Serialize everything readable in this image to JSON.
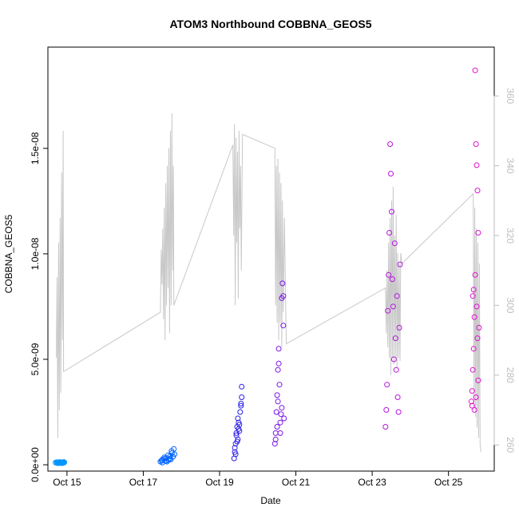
{
  "chart_data": {
    "type": "scatter",
    "title": "ATOM3 Northbound COBBNA_GEOS5",
    "xlabel": "Date",
    "ylabel": "COBBNA_GEOS5",
    "y2label": "",
    "xlim": [
      14.5,
      26.2
    ],
    "ylim": [
      -3e-10,
      1.98e-08
    ],
    "y2lim": [
      252.5,
      374
    ],
    "x_ticks": [
      15,
      17,
      19,
      21,
      23,
      25
    ],
    "x_tick_labels": [
      "Oct 15",
      "Oct 17",
      "Oct 19",
      "Oct 21",
      "Oct 23",
      "Oct 25"
    ],
    "y_ticks": [
      0,
      5e-09,
      1e-08,
      1.5e-08
    ],
    "y_tick_labels": [
      "0.0e+00",
      "5.0e-09",
      "1.0e-08",
      "1.5e-08"
    ],
    "y2_ticks": [
      260,
      280,
      300,
      320,
      340,
      360
    ],
    "y2_tick_labels": [
      "260",
      "280",
      "300",
      "320",
      "340",
      "360"
    ],
    "grid": false,
    "colors": {
      "line": "#c8c8c8",
      "axis": "#000000",
      "axis_right": "#bdbdbd",
      "point_scale": [
        "#0096ff",
        "#0064ff",
        "#1e1ee6",
        "#5a14e6",
        "#8c14e6",
        "#c814dc",
        "#e614d2"
      ]
    },
    "series": [
      {
        "kind": "line",
        "axis": "right",
        "x": [
          14.72,
          14.74,
          14.76,
          14.78,
          14.8,
          14.82,
          14.84,
          14.86,
          14.88,
          14.9,
          14.91,
          17.45,
          17.47,
          17.49,
          17.51,
          17.53,
          17.55,
          17.57,
          17.59,
          17.61,
          17.63,
          17.65,
          17.67,
          17.69,
          17.71,
          17.73,
          17.75,
          17.77,
          17.79,
          17.8,
          19.35,
          19.37,
          19.39,
          19.41,
          19.43,
          19.45,
          19.47,
          19.49,
          19.51,
          19.53,
          19.55,
          19.57,
          19.6,
          20.45,
          20.47,
          20.49,
          20.51,
          20.53,
          20.55,
          20.57,
          20.59,
          20.61,
          20.63,
          20.65,
          20.67,
          20.7,
          20.75,
          23.35,
          23.37,
          23.39,
          23.41,
          23.43,
          23.45,
          23.47,
          23.49,
          23.51,
          23.53,
          23.55,
          23.57,
          23.59,
          23.61,
          23.63,
          23.65,
          23.67,
          23.69,
          23.71,
          23.73,
          23.75,
          23.78,
          25.65,
          25.67,
          25.69,
          25.71,
          25.73,
          25.75,
          25.77,
          25.79,
          25.81,
          25.83,
          25.85
        ],
        "y": [
          285,
          308,
          262,
          318,
          270,
          325,
          275,
          338,
          290,
          350,
          281,
          298,
          316,
          306,
          322,
          296,
          328,
          290,
          335,
          300,
          340,
          305,
          345,
          292,
          350,
          300,
          355,
          310,
          340,
          300,
          346,
          320,
          352,
          300,
          348,
          318,
          344,
          302,
          350,
          322,
          340,
          310,
          349,
          345,
          300,
          340,
          295,
          342,
          290,
          338,
          295,
          335,
          288,
          330,
          298,
          325,
          289,
          305,
          292,
          310,
          288,
          318,
          285,
          325,
          280,
          330,
          285,
          334,
          283,
          320,
          285,
          326,
          282,
          315,
          285,
          312,
          284,
          315,
          312,
          332,
          270,
          328,
          268,
          322,
          265,
          318,
          262,
          312,
          260,
          258
        ]
      },
      {
        "name": "",
        "kind": "points",
        "color": "#0096ff",
        "x": [
          14.7,
          14.73,
          14.75,
          14.77,
          14.79,
          14.81,
          14.83,
          14.85,
          14.87,
          14.89,
          14.91,
          14.93,
          14.76,
          14.8,
          14.84,
          14.88,
          14.92,
          14.74,
          14.86,
          14.9
        ],
        "y": [
          1e-10,
          1.2e-10,
          9e-11,
          1.1e-10,
          1e-10,
          1.3e-10,
          8e-11,
          1.1e-10,
          1.2e-10,
          9e-11,
          1e-10,
          1.1e-10,
          7e-11,
          1.2e-10,
          1e-10,
          8e-11,
          1.3e-10,
          1.1e-10,
          9e-11,
          1.2e-10
        ]
      },
      {
        "name": "",
        "kind": "points",
        "color": "#0064ff",
        "x": [
          17.45,
          17.5,
          17.55,
          17.6,
          17.65,
          17.7,
          17.75,
          17.8,
          17.5,
          17.58,
          17.66,
          17.74,
          17.78,
          17.55,
          17.62,
          17.7,
          17.82,
          17.48,
          17.6,
          17.72
        ],
        "y": [
          1.5e-10,
          2.5e-10,
          3.5e-10,
          2e-10,
          4.5e-10,
          3e-10,
          5.5e-10,
          7.5e-10,
          1e-10,
          1.8e-10,
          2.2e-10,
          6.5e-10,
          3.8e-10,
          2.8e-10,
          1.5e-10,
          4e-10,
          5e-10,
          2e-10,
          3.2e-10,
          2.5e-10
        ]
      },
      {
        "name": "",
        "kind": "points",
        "color": "#2a1ee8",
        "x": [
          19.38,
          19.4,
          19.42,
          19.44,
          19.46,
          19.48,
          19.5,
          19.52,
          19.54,
          19.56,
          19.58,
          19.4,
          19.44,
          19.48,
          19.52,
          19.56,
          19.42,
          19.5,
          19.58,
          19.46
        ],
        "y": [
          3e-10,
          6e-10,
          1e-09,
          1.4e-09,
          1.8e-09,
          1.2e-09,
          2e-09,
          1.6e-09,
          2.5e-09,
          2.9e-09,
          3.7e-09,
          8e-10,
          1.5e-09,
          2.2e-09,
          1.9e-09,
          2.8e-09,
          5e-10,
          1.7e-09,
          3.2e-09,
          1.1e-09
        ]
      },
      {
        "name": "",
        "kind": "points",
        "color": "#7a14e6",
        "x": [
          20.45,
          20.47,
          20.49,
          20.51,
          20.53,
          20.55,
          20.57,
          20.59,
          20.61,
          20.63,
          20.65,
          20.67,
          20.69,
          20.47,
          20.51,
          20.55,
          20.59,
          20.63,
          20.67,
          20.53
        ],
        "y": [
          1e-09,
          1.5e-09,
          2.5e-09,
          3.3e-09,
          4.5e-09,
          5.5e-09,
          3.8e-09,
          2e-09,
          2.4e-09,
          7.9e-09,
          8.6e-09,
          8e-09,
          2.2e-09,
          1.2e-09,
          1.8e-09,
          4.8e-09,
          1.5e-09,
          2.7e-09,
          6.6e-09,
          3e-09
        ]
      },
      {
        "name": "",
        "kind": "points",
        "color": "#b814e0",
        "x": [
          23.35,
          23.37,
          23.39,
          23.41,
          23.43,
          23.45,
          23.47,
          23.49,
          23.51,
          23.53,
          23.55,
          23.57,
          23.59,
          23.61,
          23.63,
          23.65,
          23.67,
          23.69,
          23.71,
          23.73
        ],
        "y": [
          1.8e-09,
          2.6e-09,
          3.8e-09,
          7.3e-09,
          9e-09,
          1.1e-08,
          1.52e-08,
          1.38e-08,
          1.2e-08,
          8.8e-09,
          7.5e-09,
          5e-09,
          1.05e-08,
          6e-09,
          4.5e-09,
          8e-09,
          3.2e-09,
          2.5e-09,
          6.5e-09,
          9.5e-09
        ]
      },
      {
        "name": "",
        "kind": "points",
        "color": "#e014d0",
        "x": [
          25.6,
          25.62,
          25.64,
          25.66,
          25.68,
          25.7,
          25.72,
          25.74,
          25.76,
          25.78,
          25.8,
          25.62,
          25.66,
          25.7,
          25.74,
          25.78,
          25.64,
          25.72,
          25.76,
          25.68
        ],
        "y": [
          3e-09,
          3.5e-09,
          4.5e-09,
          8.3e-09,
          7e-09,
          1.87e-08,
          1.52e-08,
          1.42e-08,
          1.3e-08,
          1.1e-08,
          6.5e-09,
          2.8e-09,
          5.5e-09,
          9e-09,
          7.5e-09,
          4e-09,
          8e-09,
          3.2e-09,
          6e-09,
          2.6e-09
        ]
      }
    ]
  }
}
